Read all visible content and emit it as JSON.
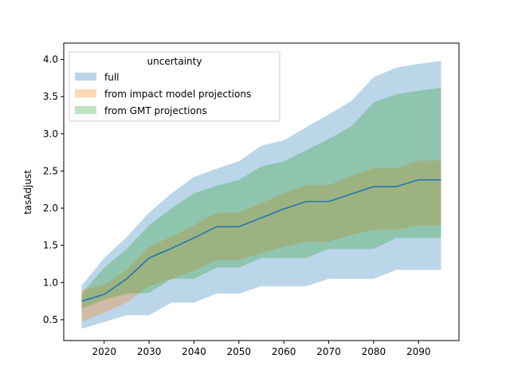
{
  "chart_data": {
    "type": "area",
    "title": "",
    "xlabel": "",
    "ylabel": "tasAdjust",
    "xlim": [
      2011,
      2099
    ],
    "ylim": [
      0.22,
      4.22
    ],
    "xticks": [
      2020,
      2030,
      2040,
      2050,
      2060,
      2070,
      2080,
      2090
    ],
    "yticks": [
      0.5,
      1.0,
      1.5,
      2.0,
      2.5,
      3.0,
      3.5,
      4.0
    ],
    "grid": false,
    "legend": {
      "title": "uncertainty",
      "placement": "top-left"
    },
    "x": [
      2015,
      2020,
      2025,
      2030,
      2035,
      2040,
      2045,
      2050,
      2055,
      2060,
      2065,
      2070,
      2075,
      2080,
      2085,
      2090,
      2095
    ],
    "line": {
      "color": "#1f77b4",
      "values": [
        0.75,
        0.84,
        1.05,
        1.33,
        1.46,
        1.6,
        1.75,
        1.75,
        1.87,
        1.99,
        2.09,
        2.09,
        2.19,
        2.29,
        2.29,
        2.38,
        2.38
      ]
    },
    "bands": [
      {
        "name": "full",
        "color": "#1f77b4",
        "upper": [
          0.96,
          1.33,
          1.61,
          1.94,
          2.2,
          2.42,
          2.53,
          2.63,
          2.84,
          2.91,
          3.09,
          3.26,
          3.44,
          3.76,
          3.89,
          3.94,
          3.98
        ],
        "lower": [
          0.38,
          0.47,
          0.56,
          0.56,
          0.73,
          0.73,
          0.85,
          0.85,
          0.95,
          0.95,
          0.95,
          1.05,
          1.05,
          1.05,
          1.17,
          1.17,
          1.17
        ]
      },
      {
        "name": "from impact model projections",
        "color": "#ff7f0e",
        "upper": [
          0.9,
          0.97,
          1.17,
          1.48,
          1.62,
          1.77,
          1.94,
          1.94,
          2.07,
          2.2,
          2.31,
          2.31,
          2.43,
          2.54,
          2.54,
          2.64,
          2.64
        ],
        "lower": [
          0.47,
          0.6,
          0.73,
          0.95,
          1.05,
          1.16,
          1.3,
          1.3,
          1.4,
          1.48,
          1.55,
          1.55,
          1.64,
          1.71,
          1.71,
          1.77,
          1.77
        ]
      },
      {
        "name": "from GMT projections",
        "color": "#2ca02c",
        "upper": [
          0.85,
          1.2,
          1.45,
          1.77,
          2.0,
          2.2,
          2.3,
          2.38,
          2.56,
          2.63,
          2.78,
          2.93,
          3.1,
          3.42,
          3.53,
          3.58,
          3.62
        ],
        "lower": [
          0.65,
          0.77,
          0.85,
          0.86,
          1.05,
          1.05,
          1.2,
          1.2,
          1.33,
          1.33,
          1.33,
          1.45,
          1.45,
          1.45,
          1.6,
          1.6,
          1.6
        ]
      }
    ]
  }
}
